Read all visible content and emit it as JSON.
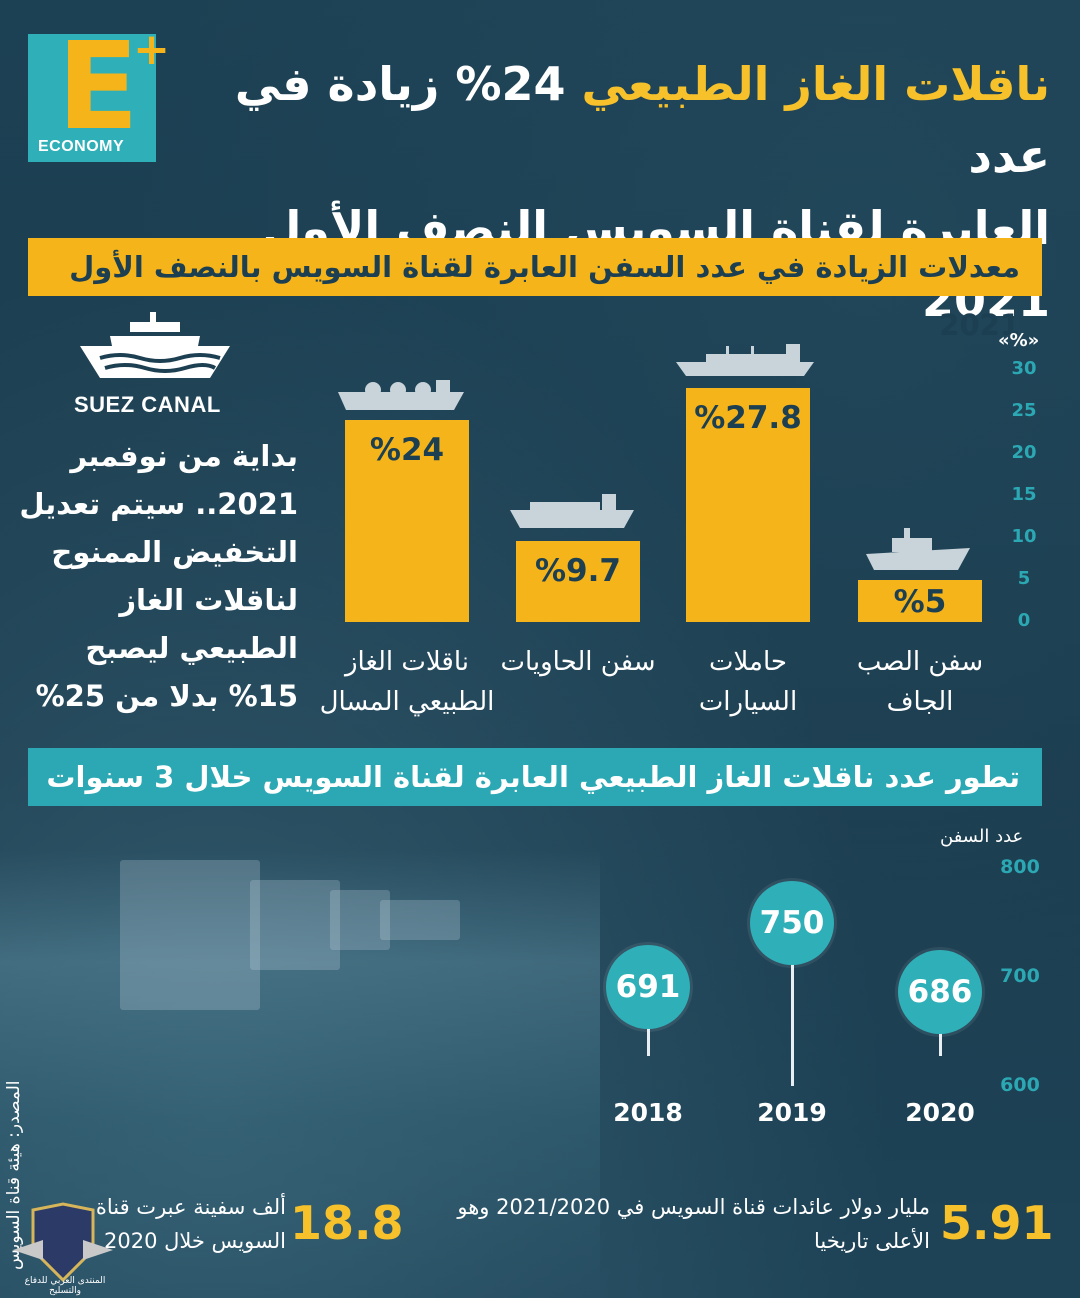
{
  "header": {
    "title_line1_hl": "ناقلات الغاز الطبيعي",
    "title_line1_rest": "24% زيادة في عدد",
    "title_line2": "العابرة لقناة السويس النصف الأول 2021",
    "logo_word": "ECONOMY",
    "logo_letter": "E",
    "logo_plus": "+"
  },
  "side": {
    "suez_label": "SUEZ CANAL",
    "note": "بداية من نوفمبر 2021.. سيتم تعديل التخفيض الممنوح لناقلات الغاز الطبيعي ليصبح 15% بدلا من 25%"
  },
  "colors": {
    "bar": "#f6b41b",
    "accent": "#2ba8b3",
    "background": "#1c3f52"
  },
  "chart_data": [
    {
      "type": "bar",
      "title": "معدلات الزيادة في عدد السفن العابرة لقناة السويس بالنصف الأول 2021",
      "y_unit": "«%»",
      "categories": [
        "ناقلات الغاز الطبيعي المسال",
        "سفن الحاويات",
        "حاملات السيارات",
        "سفن الصب الجاف"
      ],
      "values": [
        24,
        9.7,
        27.8,
        5
      ],
      "value_labels": [
        "%24",
        "%9.7",
        "%27.8",
        "%5"
      ],
      "ylim": [
        0,
        30
      ],
      "yticks": [
        "30",
        "25",
        "20",
        "15",
        "10",
        "5",
        "0"
      ]
    },
    {
      "type": "scatter",
      "title": "تطور عدد ناقلات الغاز الطبيعي العابرة لقناة السويس خلال 3 سنوات",
      "ylabel": "عدد السفن",
      "x": [
        "2018",
        "2019",
        "2020"
      ],
      "values": [
        691,
        750,
        686
      ],
      "ylim": [
        600,
        800
      ],
      "yticks": [
        "800",
        "700",
        "600"
      ]
    }
  ],
  "stats": {
    "ships_num": "18.8",
    "ships_text": "ألف سفينة عبرت قناة السويس خلال 2020",
    "revenue_num": "5.91",
    "revenue_text": "مليار دولار عائدات قناة السويس في 2021/2020 وهو الأعلى تاريخيا"
  },
  "source": "المصدر: هيئة قناة السويس",
  "watermark_text": "المنتدى العربي للدفاع والتسليح"
}
